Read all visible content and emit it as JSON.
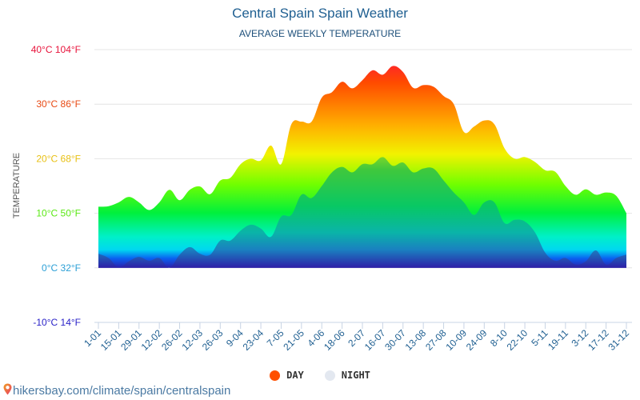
{
  "title": "Central Spain Spain Weather",
  "subtitle": "AVERAGE WEEKLY TEMPERATURE",
  "footer": {
    "url": "hikersbay.com/climate/spain/centralspain",
    "icon": "map-pin-icon"
  },
  "legend": [
    {
      "label": "DAY",
      "color": "#ff5000"
    },
    {
      "label": "NIGHT",
      "color": "#e3e8f0"
    }
  ],
  "chart_data": {
    "type": "area",
    "title": "Central Spain Spain Weather",
    "subtitle": "AVERAGE WEEKLY TEMPERATURE",
    "xlabel": "",
    "ylabel": "TEMPERATURE",
    "ylim": [
      -10,
      40
    ],
    "yticks": [
      {
        "value": 40,
        "label": "40°C 104°F",
        "color": "#e8143c"
      },
      {
        "value": 30,
        "label": "30°C 86°F",
        "color": "#e84a14"
      },
      {
        "value": 20,
        "label": "20°C 68°F",
        "color": "#e8c014"
      },
      {
        "value": 10,
        "label": "10°C 50°F",
        "color": "#5ae814"
      },
      {
        "value": 0,
        "label": "0°C 32°F",
        "color": "#2b9fd6"
      },
      {
        "value": -10,
        "label": "-10°C 14°F",
        "color": "#2a22c8"
      }
    ],
    "grid": true,
    "legend_position": "bottom",
    "x": [
      "1-01",
      "8-01",
      "15-01",
      "22-01",
      "29-01",
      "5-02",
      "12-02",
      "19-02",
      "26-02",
      "5-03",
      "12-03",
      "19-03",
      "26-03",
      "2-04",
      "9-04",
      "16-04",
      "23-04",
      "30-04",
      "7-05",
      "14-05",
      "21-05",
      "28-05",
      "4-06",
      "11-06",
      "18-06",
      "25-06",
      "2-07",
      "9-07",
      "16-07",
      "23-07",
      "30-07",
      "6-08",
      "13-08",
      "20-08",
      "27-08",
      "3-09",
      "10-09",
      "17-09",
      "24-09",
      "1-10",
      "8-10",
      "15-10",
      "22-10",
      "29-10",
      "5-11",
      "12-11",
      "19-11",
      "26-11",
      "3-12",
      "10-12",
      "17-12",
      "24-12",
      "31-12"
    ],
    "tick_labels": [
      "1-01",
      "15-01",
      "29-01",
      "12-02",
      "26-02",
      "12-03",
      "26-03",
      "9-04",
      "23-04",
      "7-05",
      "21-05",
      "4-06",
      "18-06",
      "2-07",
      "16-07",
      "30-07",
      "13-08",
      "27-08",
      "10-09",
      "24-09",
      "8-10",
      "22-10",
      "5-11",
      "19-11",
      "3-12",
      "17-12",
      "31-12"
    ],
    "series": [
      {
        "name": "DAY",
        "values": [
          11.2,
          11.3,
          12,
          13,
          12,
          10.6,
          12,
          14.3,
          12.4,
          14.3,
          14.9,
          13.5,
          16,
          16.5,
          19,
          20,
          19.7,
          22.4,
          19,
          26.3,
          26.8,
          26.8,
          31.2,
          32.2,
          34.1,
          32.9,
          34.4,
          36.2,
          35.4,
          37,
          35.9,
          33,
          33.5,
          33.2,
          31.5,
          30,
          24.9,
          25.9,
          27,
          26.3,
          21.9,
          20,
          20.3,
          19.4,
          17.9,
          17.6,
          15,
          13.4,
          14.4,
          13.4,
          13.8,
          13.2,
          10
        ]
      },
      {
        "name": "NIGHT",
        "values": [
          2.6,
          1.8,
          0.1,
          1.2,
          2,
          1.3,
          1.8,
          0,
          2.4,
          3.8,
          2.6,
          2.4,
          5,
          5,
          6.8,
          7.9,
          7.2,
          5.7,
          9.4,
          9.7,
          13.4,
          12.8,
          15,
          17.5,
          18.5,
          17.5,
          19,
          19,
          20.3,
          18.7,
          19.3,
          17.5,
          18.2,
          18.2,
          16,
          13.8,
          12,
          9.7,
          12,
          12,
          8.2,
          8.8,
          8.5,
          6.5,
          2.8,
          1.3,
          1.8,
          0.6,
          1.2,
          3.2,
          0.6,
          1.8,
          2.4
        ]
      }
    ]
  }
}
